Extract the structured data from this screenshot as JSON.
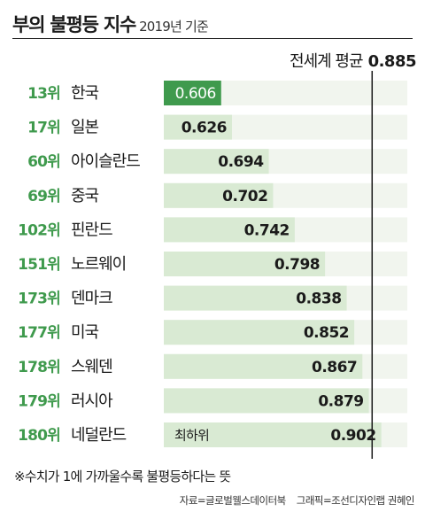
{
  "header": {
    "title": "부의 불평등 지수",
    "subtitle": "2019년 기준"
  },
  "average": {
    "label": "전세계 평균",
    "value_text": "0.885",
    "value": 0.885
  },
  "colors": {
    "highlight_bar": "#3f9a4d",
    "bar": "#d9ead3",
    "track": "#f1f5ee",
    "rank_text": "#3f9a4d",
    "avg_line": "#1a1a1a"
  },
  "chart_data": {
    "type": "bar",
    "orientation": "horizontal",
    "categories": [
      "한국",
      "일본",
      "아이슬란드",
      "중국",
      "핀란드",
      "노르웨이",
      "덴마크",
      "미국",
      "스웨덴",
      "러시아",
      "네덜란드"
    ],
    "ranks": [
      "13위",
      "17위",
      "60위",
      "69위",
      "102위",
      "151위",
      "173위",
      "177위",
      "178위",
      "179위",
      "180위"
    ],
    "values": [
      0.606,
      0.626,
      0.694,
      0.702,
      0.742,
      0.798,
      0.838,
      0.852,
      0.867,
      0.879,
      0.902
    ],
    "value_labels": [
      "0.606",
      "0.626",
      "0.694",
      "0.702",
      "0.742",
      "0.798",
      "0.838",
      "0.852",
      "0.867",
      "0.879",
      "0.902"
    ],
    "highlight_index": 0,
    "annotation": {
      "index": 10,
      "text": "최하위"
    },
    "reference_line": {
      "label": "전세계 평균",
      "value": 0.885
    },
    "xlim": [
      0.5,
      0.95
    ]
  },
  "footer": {
    "note": "※수치가 1에 가까울수록 불평등하다는 뜻",
    "source": "자료=글로벌웰스데이터북",
    "graphic": "그래픽=조선디자인랩 권혜인"
  }
}
